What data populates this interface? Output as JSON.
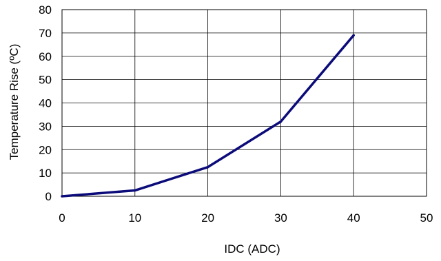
{
  "chart_data": {
    "type": "line",
    "title": "",
    "xlabel": "IDC (ADC)",
    "ylabel": "Temperature Rise (ºC)",
    "xlim": [
      0,
      50
    ],
    "ylim": [
      0,
      80
    ],
    "x_ticks": [
      0,
      10,
      20,
      30,
      40,
      50
    ],
    "y_ticks": [
      0,
      10,
      20,
      30,
      40,
      50,
      60,
      70,
      80
    ],
    "grid": true,
    "legend": "none",
    "series": [
      {
        "color": "#0b0b7a",
        "x": [
          0,
          10,
          20,
          30,
          40
        ],
        "y": [
          0,
          2.5,
          12.5,
          32,
          69
        ]
      }
    ]
  }
}
